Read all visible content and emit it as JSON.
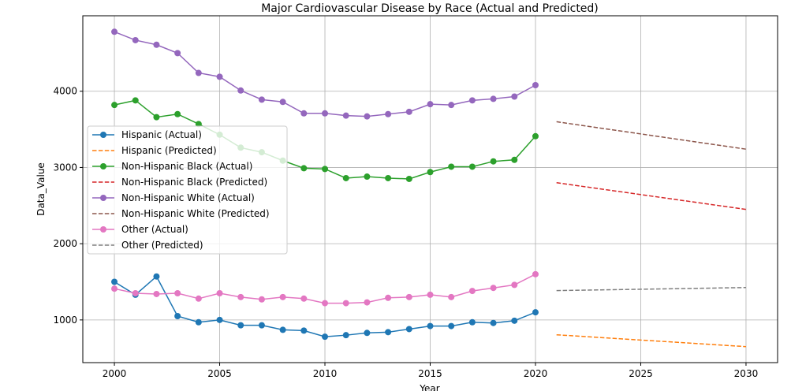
{
  "chart_data": {
    "type": "line",
    "title": "Major Cardiovascular Disease by Race (Actual and Predicted)",
    "xlabel": "Year",
    "ylabel": "Data_Value",
    "xlim": [
      1998.5,
      2031.5
    ],
    "ylim": [
      440,
      4990
    ],
    "xticks": [
      2000,
      2005,
      2010,
      2015,
      2020,
      2025,
      2030
    ],
    "yticks": [
      1000,
      2000,
      3000,
      4000
    ],
    "grid": true,
    "legend_placement": "center-left",
    "series": [
      {
        "name": "Hispanic (Actual)",
        "color": "#1f77b4",
        "style": "solid",
        "marker": true,
        "x": [
          2000,
          2001,
          2002,
          2003,
          2004,
          2005,
          2006,
          2007,
          2008,
          2009,
          2010,
          2011,
          2012,
          2013,
          2014,
          2015,
          2016,
          2017,
          2018,
          2019,
          2020
        ],
        "y": [
          1500,
          1330,
          1570,
          1050,
          970,
          1000,
          930,
          930,
          870,
          860,
          780,
          800,
          830,
          840,
          880,
          920,
          920,
          970,
          960,
          990,
          1100
        ]
      },
      {
        "name": "Hispanic (Predicted)",
        "color": "#ff7f0e",
        "style": "dashed",
        "marker": false,
        "x": [
          2021,
          2030
        ],
        "y": [
          805,
          650
        ]
      },
      {
        "name": "Non-Hispanic Black (Actual)",
        "color": "#2ca02c",
        "style": "solid",
        "marker": true,
        "x": [
          2000,
          2001,
          2002,
          2003,
          2004,
          2005,
          2006,
          2007,
          2008,
          2009,
          2010,
          2011,
          2012,
          2013,
          2014,
          2015,
          2016,
          2017,
          2018,
          2019,
          2020
        ],
        "y": [
          3820,
          3880,
          3660,
          3700,
          3570,
          3430,
          3260,
          3200,
          3090,
          2990,
          2980,
          2860,
          2880,
          2860,
          2850,
          2940,
          3010,
          3010,
          3080,
          3100,
          3410
        ]
      },
      {
        "name": "Non-Hispanic Black (Predicted)",
        "color": "#d62728",
        "style": "dashed",
        "marker": false,
        "x": [
          2021,
          2030
        ],
        "y": [
          2800,
          2450
        ]
      },
      {
        "name": "Non-Hispanic White (Actual)",
        "color": "#9467bd",
        "style": "solid",
        "marker": true,
        "x": [
          2000,
          2001,
          2002,
          2003,
          2004,
          2005,
          2006,
          2007,
          2008,
          2009,
          2010,
          2011,
          2012,
          2013,
          2014,
          2015,
          2016,
          2017,
          2018,
          2019,
          2020
        ],
        "y": [
          4780,
          4670,
          4610,
          4500,
          4240,
          4190,
          4010,
          3890,
          3860,
          3710,
          3710,
          3680,
          3670,
          3700,
          3730,
          3830,
          3820,
          3880,
          3900,
          3930,
          4080
        ]
      },
      {
        "name": "Non-Hispanic White (Predicted)",
        "color": "#8c564b",
        "style": "dashed",
        "marker": false,
        "x": [
          2021,
          2030
        ],
        "y": [
          3600,
          3240
        ]
      },
      {
        "name": "Other (Actual)",
        "color": "#e377c2",
        "style": "solid",
        "marker": true,
        "x": [
          2000,
          2001,
          2002,
          2003,
          2004,
          2005,
          2006,
          2007,
          2008,
          2009,
          2010,
          2011,
          2012,
          2013,
          2014,
          2015,
          2016,
          2017,
          2018,
          2019,
          2020
        ],
        "y": [
          1410,
          1350,
          1340,
          1350,
          1280,
          1350,
          1300,
          1270,
          1300,
          1280,
          1220,
          1220,
          1230,
          1290,
          1300,
          1330,
          1300,
          1380,
          1420,
          1460,
          1600
        ]
      },
      {
        "name": "Other (Predicted)",
        "color": "#7f7f7f",
        "style": "dashed",
        "marker": false,
        "x": [
          2021,
          2030
        ],
        "y": [
          1385,
          1425
        ]
      }
    ]
  }
}
